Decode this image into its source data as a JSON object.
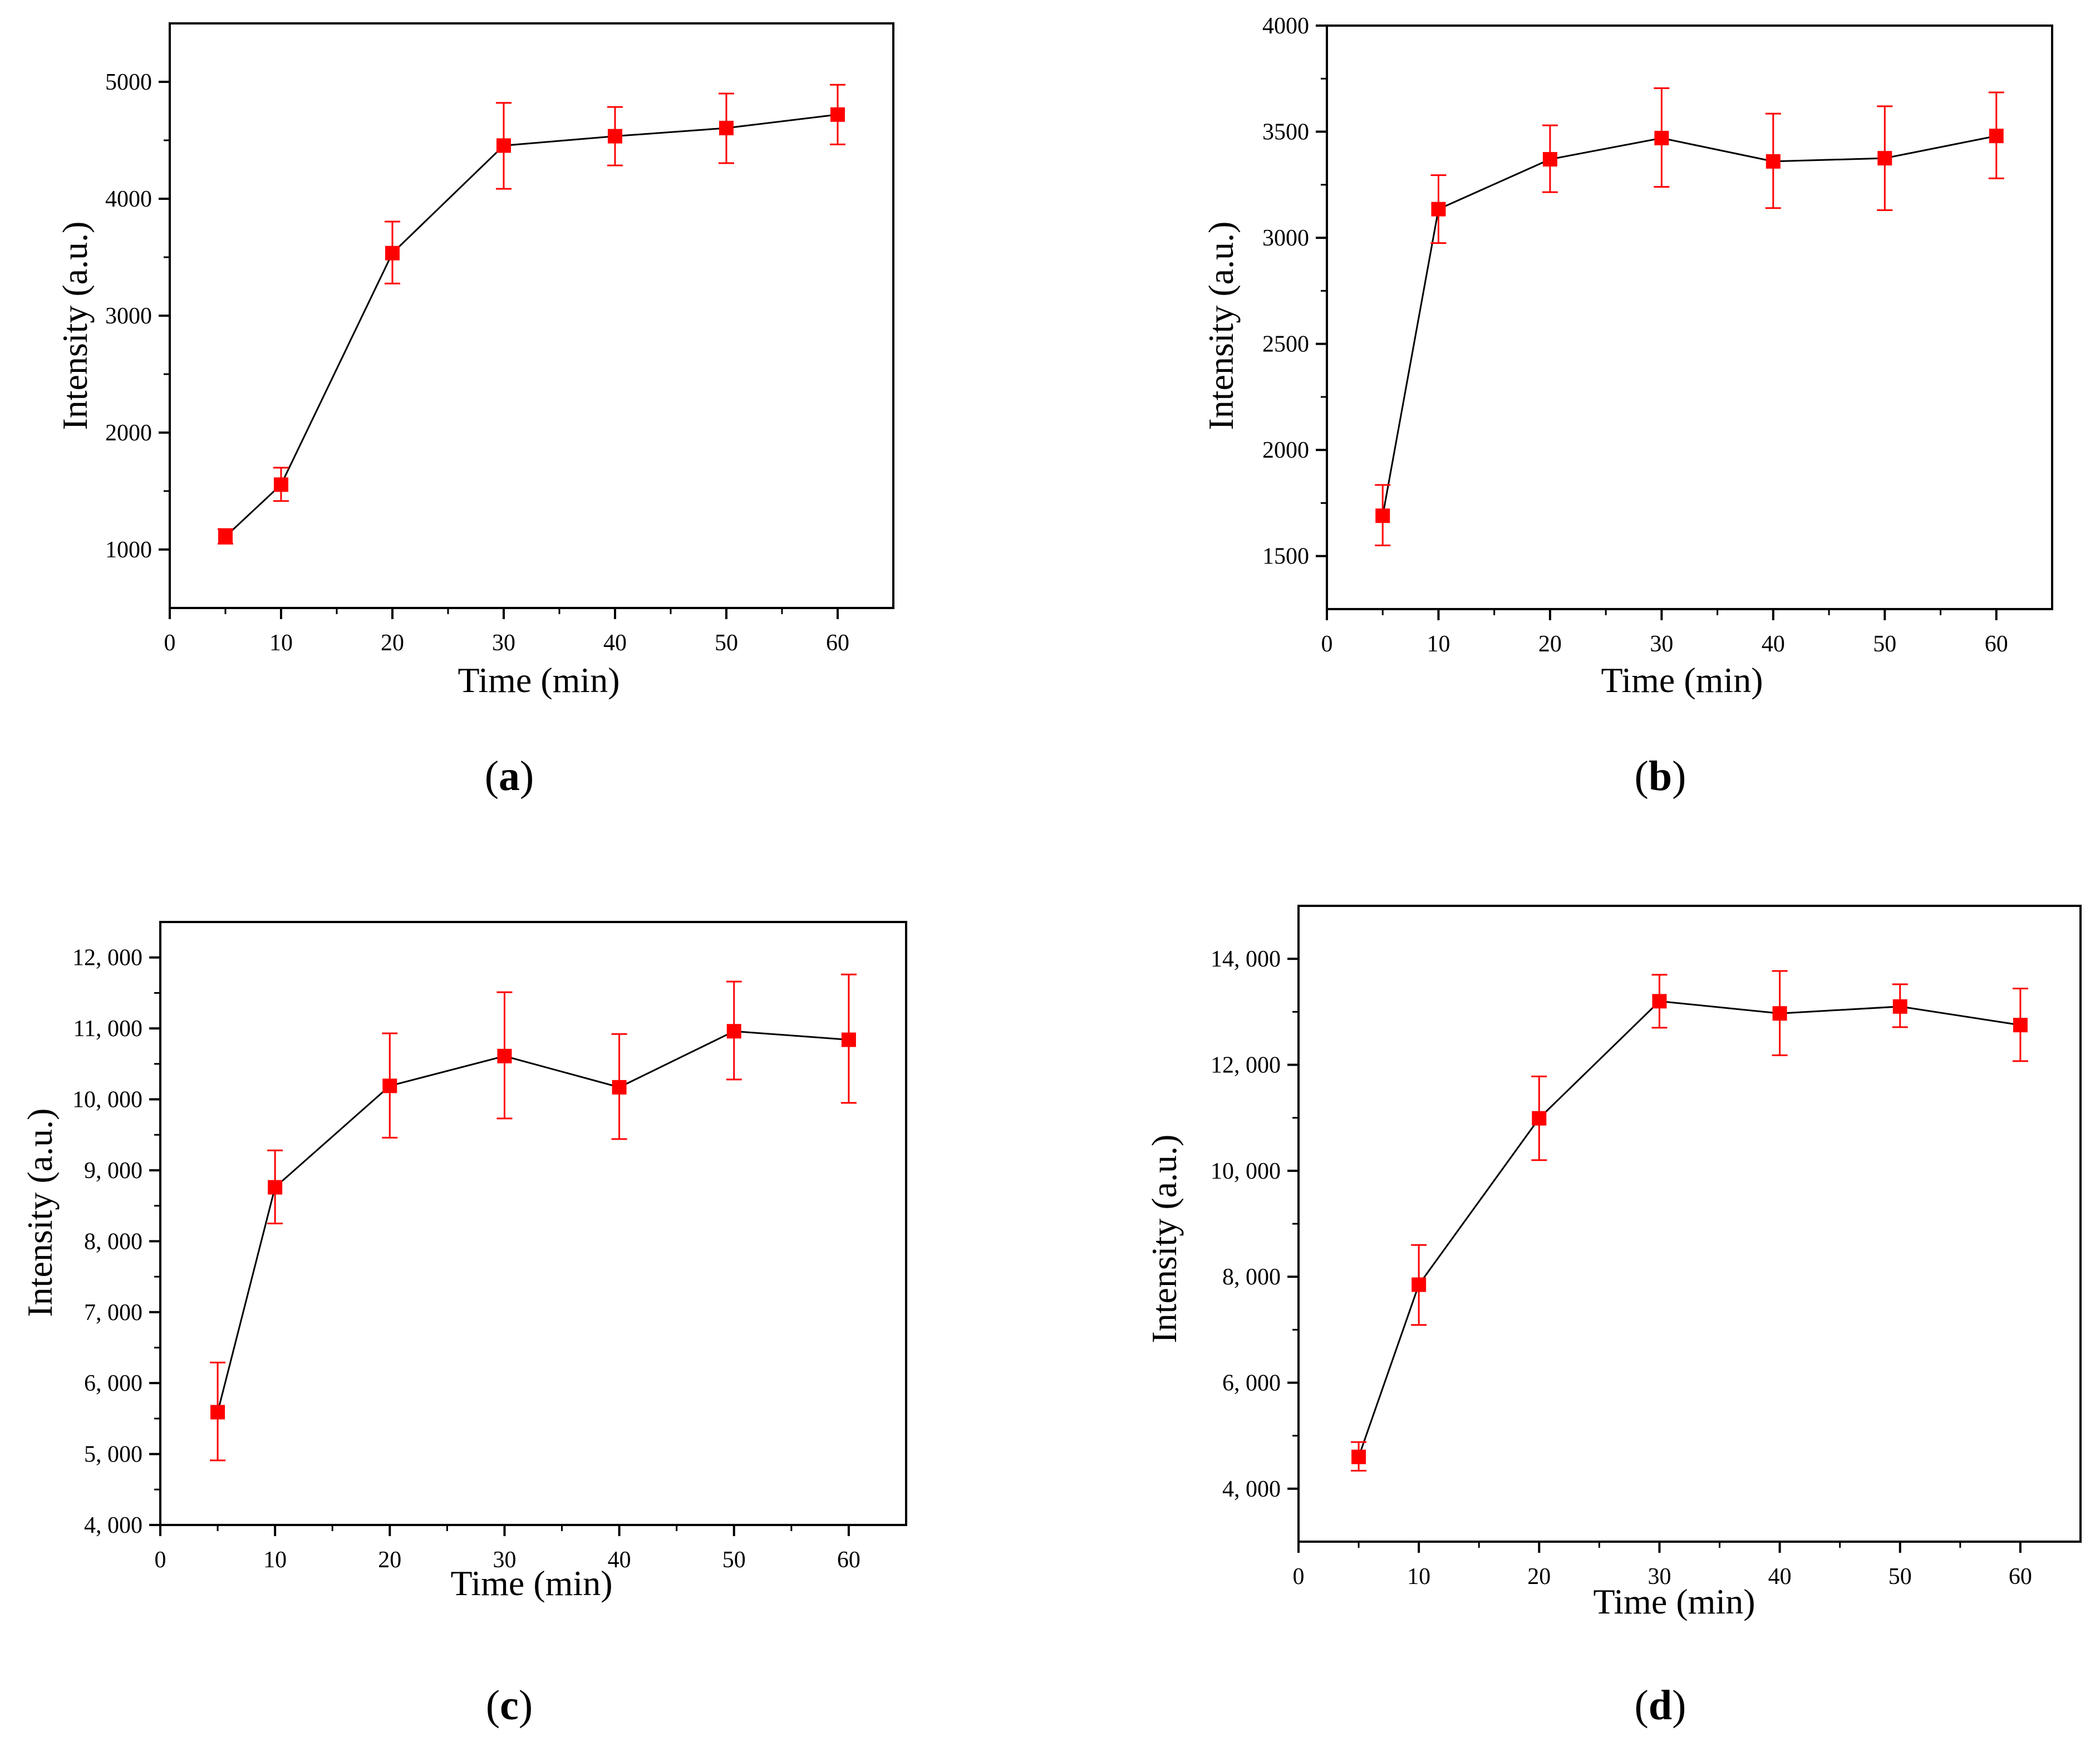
{
  "colors": {
    "marker": "#ff0000",
    "errorbar": "#ff0000",
    "line": "#000000",
    "axis": "#000000"
  },
  "chart_data": [
    {
      "id": "a",
      "type": "line",
      "caption": "a",
      "xlabel": "Time (min)",
      "ylabel": "Intensity (a.u.)",
      "xlim": [
        0,
        65
      ],
      "ylim": [
        500,
        5500
      ],
      "xticks": [
        0,
        10,
        20,
        30,
        40,
        50,
        60
      ],
      "xtick_labels": [
        "0",
        "10",
        "20",
        "30",
        "40",
        "50",
        "60"
      ],
      "yticks": [
        1000,
        2000,
        3000,
        4000,
        5000
      ],
      "ytick_labels": [
        "1000",
        "2000",
        "3000",
        "4000",
        "5000"
      ],
      "y_minor": [
        1000,
        1500,
        2000,
        2500,
        3000,
        3500,
        4000,
        4500,
        5000
      ],
      "series": [
        {
          "name": "Intensity",
          "x": [
            5,
            10,
            20,
            30,
            40,
            50,
            60
          ],
          "y": [
            1110,
            1555,
            3535,
            4455,
            4535,
            4605,
            4720
          ],
          "err_low": [
            1050,
            1415,
            3275,
            4085,
            4285,
            4305,
            4465
          ],
          "err_high": [
            1175,
            1700,
            3805,
            4820,
            4785,
            4900,
            4975
          ]
        }
      ]
    },
    {
      "id": "b",
      "type": "line",
      "caption": "b",
      "xlabel": "Time (min)",
      "ylabel": "Intensity (a.u.)",
      "xlim": [
        0,
        65
      ],
      "ylim": [
        1250,
        4000
      ],
      "xticks": [
        0,
        10,
        20,
        30,
        40,
        50,
        60
      ],
      "xtick_labels": [
        "0",
        "10",
        "20",
        "30",
        "40",
        "50",
        "60"
      ],
      "yticks": [
        1500,
        2000,
        2500,
        3000,
        3500,
        4000
      ],
      "ytick_labels": [
        "1500",
        "2000",
        "2500",
        "3000",
        "3500",
        "4000"
      ],
      "y_minor": [
        1500,
        1750,
        2000,
        2250,
        2500,
        2750,
        3000,
        3250,
        3500,
        3750,
        4000
      ],
      "series": [
        {
          "name": "Intensity",
          "x": [
            5,
            10,
            20,
            30,
            40,
            50,
            60
          ],
          "y": [
            1690,
            3135,
            3370,
            3470,
            3360,
            3375,
            3480
          ],
          "err_low": [
            1550,
            2975,
            3215,
            3240,
            3140,
            3130,
            3280
          ],
          "err_high": [
            1835,
            3295,
            3530,
            3705,
            3585,
            3620,
            3685
          ]
        }
      ]
    },
    {
      "id": "c",
      "type": "line",
      "caption": "c",
      "xlabel": "Time (min)",
      "ylabel": "Intensity (a.u.)",
      "xlim": [
        0,
        65
      ],
      "ylim": [
        4000,
        12500
      ],
      "xticks": [
        0,
        10,
        20,
        30,
        40,
        50,
        60
      ],
      "xtick_labels": [
        "0",
        "10",
        "20",
        "30",
        "40",
        "50",
        "60"
      ],
      "yticks": [
        4000,
        5000,
        6000,
        7000,
        8000,
        9000,
        10000,
        11000,
        12000
      ],
      "ytick_labels": [
        "4, 000",
        "5, 000",
        "6, 000",
        "7, 000",
        "8, 000",
        "9, 000",
        "10, 000",
        "11, 000",
        "12, 000"
      ],
      "y_minor": [
        4000,
        4500,
        5000,
        5500,
        6000,
        6500,
        7000,
        7500,
        8000,
        8500,
        9000,
        9500,
        10000,
        10500,
        11000,
        11500,
        12000
      ],
      "series": [
        {
          "name": "Intensity",
          "x": [
            5,
            10,
            20,
            30,
            40,
            50,
            60
          ],
          "y": [
            5590,
            8760,
            10190,
            10610,
            10170,
            10960,
            10840
          ],
          "err_low": [
            4910,
            8250,
            9460,
            9730,
            9440,
            10280,
            9950
          ],
          "err_high": [
            6290,
            9280,
            10930,
            11510,
            10920,
            11660,
            11760
          ]
        }
      ]
    },
    {
      "id": "d",
      "type": "line",
      "caption": "d",
      "xlabel": "Time (min)",
      "ylabel": "Intensity (a.u.)",
      "xlim": [
        0,
        65
      ],
      "ylim": [
        3000,
        15000
      ],
      "xticks": [
        0,
        10,
        20,
        30,
        40,
        50,
        60
      ],
      "xtick_labels": [
        "0",
        "10",
        "20",
        "30",
        "40",
        "50",
        "60"
      ],
      "yticks": [
        4000,
        6000,
        8000,
        10000,
        12000,
        14000
      ],
      "ytick_labels": [
        "4, 000",
        "6, 000",
        "8, 000",
        "10, 000",
        "12, 000",
        "14, 000"
      ],
      "y_minor": [
        4000,
        5000,
        6000,
        7000,
        8000,
        9000,
        10000,
        11000,
        12000,
        13000,
        14000
      ],
      "series": [
        {
          "name": "Intensity",
          "x": [
            5,
            10,
            20,
            30,
            40,
            50,
            60
          ],
          "y": [
            4600,
            7850,
            10990,
            13200,
            12970,
            13100,
            12750
          ],
          "err_low": [
            4340,
            7090,
            10200,
            12700,
            12180,
            12710,
            12070
          ],
          "err_high": [
            4880,
            8600,
            11780,
            13700,
            13770,
            13520,
            13440
          ]
        }
      ]
    }
  ]
}
